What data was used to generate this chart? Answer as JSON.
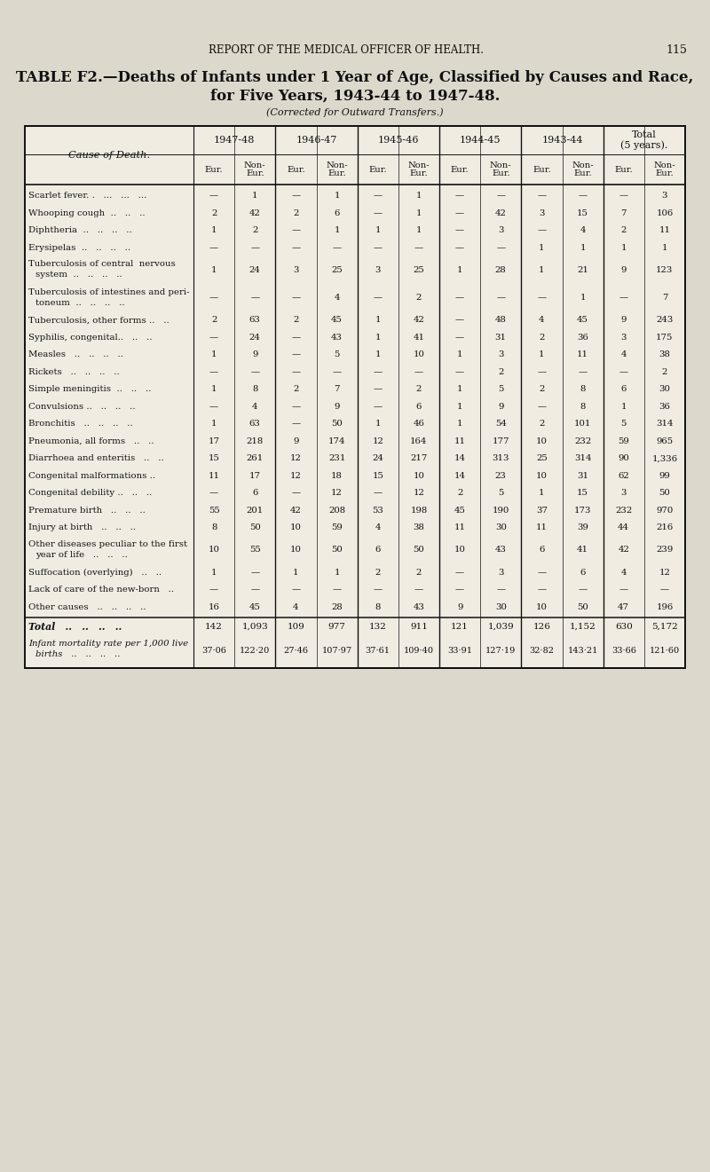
{
  "page_header": "REPORT OF THE MEDICAL OFFICER OF HEALTH.",
  "page_number": "115",
  "title_line1": "TABLE F2.—Deaths of Infants under 1 Year of Age, Classified by Causes and Race,",
  "title_line2": "for Five Years, 1943-44 to 1947-48.",
  "subtitle": "(Corrected for Outward Transfers.)",
  "col_header_row1": [
    "1947-48",
    "1946-47",
    "1945-46",
    "1944-45",
    "1943-44",
    "Total\n(5 years)."
  ],
  "cause_col_header": "Cause of Death.",
  "rows": [
    {
      "cause": "Scarlet fever. .   ...   ...   ...",
      "data": [
        "—",
        "1",
        "—",
        "1",
        "—",
        "1",
        "—",
        "—",
        "—",
        "—",
        "—",
        "3"
      ],
      "tall": false
    },
    {
      "cause": "Whooping cough  ..   ..   ..",
      "data": [
        "2",
        "42",
        "2",
        "6",
        "—",
        "1",
        "—",
        "42",
        "3",
        "15",
        "7",
        "106"
      ],
      "tall": false
    },
    {
      "cause": "Diphtheria  ..   ..   ..   ..",
      "data": [
        "1",
        "2",
        "—",
        "1",
        "1",
        "1",
        "—",
        "3",
        "—",
        "4",
        "2",
        "11"
      ],
      "tall": false
    },
    {
      "cause": "Erysipelas  ..   ..   ..   ..",
      "data": [
        "—",
        "—",
        "—",
        "—",
        "—",
        "—",
        "—",
        "—",
        "1",
        "1",
        "1",
        "1"
      ],
      "tall": false
    },
    {
      "cause": "Tuberculosis of central  nervous\n    system  ..   ..   ..   ..",
      "data": [
        "1",
        "24",
        "3",
        "25",
        "3",
        "25",
        "1",
        "28",
        "1",
        "21",
        "9",
        "123"
      ],
      "tall": true
    },
    {
      "cause": "Tuberculosis of intestines and peri-\n    toneum  ..   ..   ..   ..",
      "data": [
        "—",
        "—",
        "—",
        "4",
        "—",
        "2",
        "—",
        "—",
        "—",
        "1",
        "—",
        "7"
      ],
      "tall": true
    },
    {
      "cause": "Tuberculosis, other forms ..   ..",
      "data": [
        "2",
        "63",
        "2",
        "45",
        "1",
        "42",
        "—",
        "48",
        "4",
        "45",
        "9",
        "243"
      ],
      "tall": false
    },
    {
      "cause": "Syphilis, congenital..   ..   ..",
      "data": [
        "—",
        "24",
        "—",
        "43",
        "1",
        "41",
        "—",
        "31",
        "2",
        "36",
        "3",
        "175"
      ],
      "tall": false
    },
    {
      "cause": "Measles   ..   ..   ..   ..",
      "data": [
        "1",
        "9",
        "—",
        "5",
        "1",
        "10",
        "1",
        "3",
        "1",
        "11",
        "4",
        "38"
      ],
      "tall": false
    },
    {
      "cause": "Rickets   ..   ..   ..   ..",
      "data": [
        "—",
        "—",
        "—",
        "—",
        "—",
        "—",
        "—",
        "2",
        "—",
        "—",
        "—",
        "2"
      ],
      "tall": false
    },
    {
      "cause": "Simple meningitis  ..   ..   ..",
      "data": [
        "1",
        "8",
        "2",
        "7",
        "—",
        "2",
        "1",
        "5",
        "2",
        "8",
        "6",
        "30"
      ],
      "tall": false
    },
    {
      "cause": "Convulsions ..   ..   ..   ..",
      "data": [
        "—",
        "4",
        "—",
        "9",
        "—",
        "6",
        "1",
        "9",
        "—",
        "8",
        "1",
        "36"
      ],
      "tall": false
    },
    {
      "cause": "Bronchitis   ..   ..   ..   ..",
      "data": [
        "1",
        "63",
        "—",
        "50",
        "1",
        "46",
        "1",
        "54",
        "2",
        "101",
        "5",
        "314"
      ],
      "tall": false
    },
    {
      "cause": "Pneumonia, all forms   ..   ..",
      "data": [
        "17",
        "218",
        "9",
        "174",
        "12",
        "164",
        "11",
        "177",
        "10",
        "232",
        "59",
        "965"
      ],
      "tall": false
    },
    {
      "cause": "Diarrhoea and enteritis   ..   ..",
      "data": [
        "15",
        "261",
        "12",
        "231",
        "24",
        "217",
        "14",
        "313",
        "25",
        "314",
        "90",
        "1,336"
      ],
      "tall": false
    },
    {
      "cause": "Congenital malformations ..",
      "data": [
        "11",
        "17",
        "12",
        "18",
        "15",
        "10",
        "14",
        "23",
        "10",
        "31",
        "62",
        "99"
      ],
      "tall": false
    },
    {
      "cause": "Congenital debility ..   ..   ..",
      "data": [
        "—",
        "6",
        "—",
        "12",
        "—",
        "12",
        "2",
        "5",
        "1",
        "15",
        "3",
        "50"
      ],
      "tall": false
    },
    {
      "cause": "Premature birth   ..   ..   ..",
      "data": [
        "55",
        "201",
        "42",
        "208",
        "53",
        "198",
        "45",
        "190",
        "37",
        "173",
        "232",
        "970"
      ],
      "tall": false
    },
    {
      "cause": "Injury at birth   ..   ..   ..",
      "data": [
        "8",
        "50",
        "10",
        "59",
        "4",
        "38",
        "11",
        "30",
        "11",
        "39",
        "44",
        "216"
      ],
      "tall": false
    },
    {
      "cause": "Other diseases peculiar to the first\n    year of life   ..   ..   ..",
      "data": [
        "10",
        "55",
        "10",
        "50",
        "6",
        "50",
        "10",
        "43",
        "6",
        "41",
        "42",
        "239"
      ],
      "tall": true
    },
    {
      "cause": "Suffocation (overlying)   ..   ..",
      "data": [
        "1",
        "—",
        "1",
        "1",
        "2",
        "2",
        "—",
        "3",
        "—",
        "6",
        "4",
        "12"
      ],
      "tall": false
    },
    {
      "cause": "Lack of care of the new-born   ..",
      "data": [
        "—",
        "—",
        "—",
        "—",
        "—",
        "—",
        "—",
        "—",
        "—",
        "—",
        "—",
        "—"
      ],
      "tall": false
    },
    {
      "cause": "Other causes   ..   ..   ..   ..",
      "data": [
        "16",
        "45",
        "4",
        "28",
        "8",
        "43",
        "9",
        "30",
        "10",
        "50",
        "47",
        "196"
      ],
      "tall": false
    }
  ],
  "total_row": {
    "cause": "Total   ..   ..   ..   ..",
    "data": [
      "142",
      "1,093",
      "109",
      "977",
      "132",
      "911",
      "121",
      "1,039",
      "126",
      "1,152",
      "630",
      "5,172"
    ]
  },
  "imr_cause_line1": "Infant mortality rate per 1,000 live",
  "imr_cause_line2": "births   ..   ..   ..   ..",
  "imr_data": [
    "37·06",
    "122·20",
    "27·46",
    "107·97",
    "37·61",
    "109·40",
    "33·91",
    "127·19",
    "32·82",
    "143·21",
    "33·66",
    "121·60"
  ],
  "bg_color": "#ddd8cc",
  "table_bg": "#f0ece2",
  "line_color": "#111111",
  "text_color": "#111111"
}
